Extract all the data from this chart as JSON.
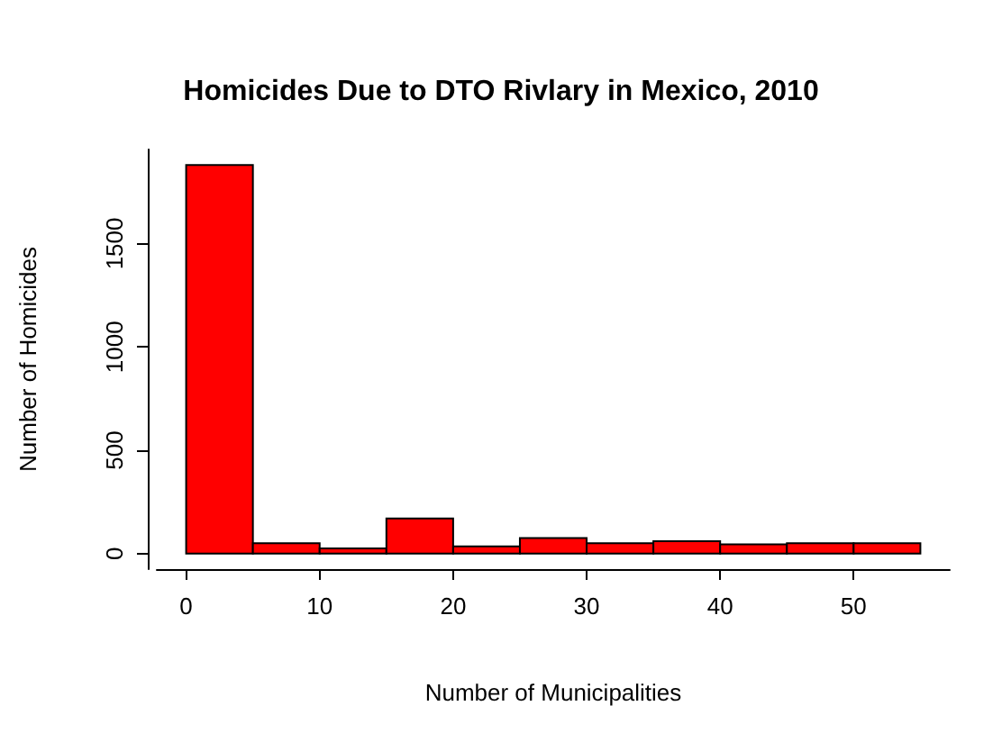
{
  "chart_data": {
    "type": "histogram",
    "title": "Homicides Due to DTO Rivlary in Mexico, 2010",
    "xlabel": "Number of Municipalities",
    "ylabel": "Number of Homicides",
    "bins": [
      0,
      5,
      10,
      15,
      20,
      25,
      30,
      35,
      40,
      45,
      50,
      55
    ],
    "values": [
      1880,
      50,
      25,
      170,
      35,
      75,
      50,
      60,
      45,
      50,
      50
    ],
    "color": "#ff0000",
    "xlim": [
      -2.2,
      57.2
    ],
    "xticks": [
      0,
      10,
      20,
      30,
      40,
      50
    ],
    "ylim": [
      -75,
      1955
    ],
    "yticks": [
      0,
      500,
      1000,
      1500
    ]
  }
}
